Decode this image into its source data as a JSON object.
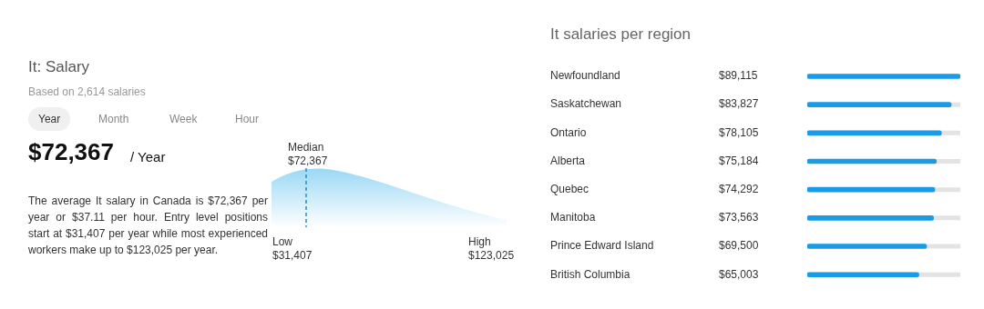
{
  "chart_data": [
    {
      "type": "other",
      "title": "It: Salary",
      "subtitle": "Based on 2,614 salaries",
      "annotations": [
        "Year",
        "Month",
        "Week",
        "Hour",
        "$72,367",
        "/ Year",
        "The average It salary in Canada is $72,367 per year or $37.11 per hour. Entry level positions start at $31,407 per year while most experienced workers make up to $123,025 per year.",
        "Median",
        "$72,367",
        "Low",
        "$31,407",
        "High",
        "$123,025"
      ]
    },
    {
      "type": "bar",
      "orientation": "horizontal",
      "title": "It salaries per region",
      "categories": [
        "Newfoundland",
        "Saskatchewan",
        "Ontario",
        "Alberta",
        "Quebec",
        "Manitoba",
        "Prince Edward Island",
        "British Columbia"
      ],
      "values": [
        89115,
        83827,
        78105,
        75184,
        74292,
        73563,
        69500,
        65003
      ],
      "value_labels": [
        "$89,115",
        "$83,827",
        "$78,105",
        "$75,184",
        "$74,292",
        "$73,563",
        "$69,500",
        "$65,003"
      ],
      "color": "#1a9be8"
    }
  ]
}
